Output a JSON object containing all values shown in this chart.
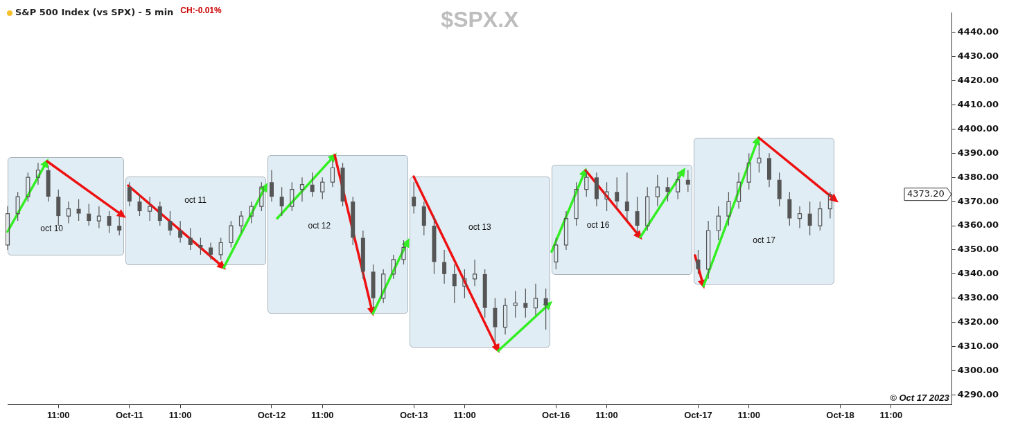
{
  "chart_data": {
    "type": "candlestick",
    "title": "$SPX.X",
    "subtitle": "S&P 500 Index (vs SPX) - 5 min",
    "annotations": [
      "CH:-0.01%",
      "© Oct 17 2023",
      "oct 10",
      "oct 11",
      "oct 12",
      "oct 13",
      "oct 16",
      "oct 17",
      "4373.20"
    ],
    "categories": [
      null,
      null,
      null,
      null,
      null,
      "11:00",
      null,
      null,
      null,
      null,
      null,
      null,
      "Oct-11",
      null,
      null,
      null,
      null,
      "11:00",
      null,
      null,
      null,
      null,
      null,
      null,
      null,
      null,
      "Oct-12",
      null,
      null,
      null,
      null,
      "11:00",
      null,
      null,
      null,
      null,
      null,
      null,
      null,
      null,
      "Oct-13",
      null,
      null,
      null,
      null,
      "11:00",
      null,
      null,
      null,
      null,
      null,
      null,
      null,
      null,
      "Oct-16",
      null,
      null,
      null,
      null,
      "11:00",
      null,
      null,
      null,
      null,
      null,
      null,
      null,
      null,
      "Oct-17",
      null,
      null,
      null,
      null,
      "11:00",
      null,
      null,
      null,
      null,
      null,
      null,
      null,
      null,
      "Oct-18",
      null,
      null,
      null,
      null,
      "11:00",
      null,
      null,
      null,
      null,
      null,
      null
    ],
    "ohlc": [
      [
        4352,
        4368,
        4350,
        4365
      ],
      [
        4365,
        4374,
        4362,
        4372
      ],
      [
        4372,
        4382,
        4370,
        4380
      ],
      [
        4380,
        4386,
        4377,
        4383
      ],
      [
        4383,
        4385,
        4370,
        4372
      ],
      [
        4372,
        4375,
        4360,
        4364
      ],
      [
        4364,
        4370,
        4361,
        4367
      ],
      [
        4367,
        4371,
        4362,
        4365
      ],
      [
        4365,
        4369,
        4360,
        4362
      ],
      [
        4362,
        4368,
        4359,
        4364
      ],
      [
        4364,
        4366,
        4357,
        4360
      ],
      [
        4360,
        4364,
        4356,
        4358
      ],
      [
        4376,
        4378,
        4368,
        4370
      ],
      [
        4370,
        4373,
        4364,
        4366
      ],
      [
        4366,
        4372,
        4362,
        4368
      ],
      [
        4368,
        4370,
        4360,
        4362
      ],
      [
        4362,
        4366,
        4356,
        4358
      ],
      [
        4358,
        4362,
        4353,
        4355
      ],
      [
        4355,
        4359,
        4350,
        4352
      ],
      [
        4352,
        4355,
        4348,
        4351
      ],
      [
        4351,
        4353,
        4346,
        4348
      ],
      [
        4348,
        4355,
        4346,
        4353
      ],
      [
        4353,
        4362,
        4351,
        4360
      ],
      [
        4360,
        4366,
        4357,
        4364
      ],
      [
        4364,
        4370,
        4361,
        4368
      ],
      [
        4368,
        4378,
        4366,
        4376
      ],
      [
        4378,
        4383,
        4370,
        4372
      ],
      [
        4372,
        4376,
        4364,
        4368
      ],
      [
        4368,
        4378,
        4366,
        4375
      ],
      [
        4375,
        4380,
        4370,
        4377
      ],
      [
        4377,
        4382,
        4372,
        4374
      ],
      [
        4374,
        4380,
        4371,
        4378
      ],
      [
        4378,
        4387,
        4376,
        4384
      ],
      [
        4384,
        4386,
        4368,
        4370
      ],
      [
        4370,
        4372,
        4352,
        4355
      ],
      [
        4355,
        4358,
        4338,
        4341
      ],
      [
        4341,
        4344,
        4326,
        4330
      ],
      [
        4330,
        4342,
        4328,
        4340
      ],
      [
        4340,
        4348,
        4338,
        4346
      ],
      [
        4346,
        4354,
        4344,
        4351
      ],
      [
        4372,
        4378,
        4365,
        4368
      ],
      [
        4368,
        4370,
        4356,
        4360
      ],
      [
        4360,
        4364,
        4340,
        4345
      ],
      [
        4345,
        4350,
        4336,
        4340
      ],
      [
        4340,
        4344,
        4328,
        4335
      ],
      [
        4335,
        4342,
        4330,
        4338
      ],
      [
        4338,
        4346,
        4335,
        4340
      ],
      [
        4340,
        4342,
        4322,
        4326
      ],
      [
        4326,
        4330,
        4312,
        4318
      ],
      [
        4318,
        4330,
        4315,
        4327
      ],
      [
        4327,
        4333,
        4322,
        4328
      ],
      [
        4328,
        4334,
        4322,
        4326
      ],
      [
        4326,
        4336,
        4323,
        4330
      ],
      [
        4330,
        4334,
        4317,
        4327
      ],
      [
        4345,
        4355,
        4342,
        4352
      ],
      [
        4352,
        4366,
        4350,
        4363
      ],
      [
        4363,
        4378,
        4360,
        4375
      ],
      [
        4375,
        4383,
        4372,
        4380
      ],
      [
        4380,
        4382,
        4368,
        4371
      ],
      [
        4371,
        4378,
        4366,
        4374
      ],
      [
        4374,
        4380,
        4367,
        4370
      ],
      [
        4370,
        4382,
        4362,
        4366
      ],
      [
        4366,
        4372,
        4357,
        4360
      ],
      [
        4360,
        4376,
        4358,
        4372
      ],
      [
        4372,
        4381,
        4368,
        4376
      ],
      [
        4376,
        4380,
        4370,
        4374
      ],
      [
        4374,
        4382,
        4371,
        4379
      ],
      [
        4379,
        4383,
        4374,
        4377
      ],
      [
        4346,
        4350,
        4340,
        4342
      ],
      [
        4342,
        4362,
        4338,
        4358
      ],
      [
        4358,
        4368,
        4354,
        4364
      ],
      [
        4364,
        4374,
        4360,
        4370
      ],
      [
        4370,
        4382,
        4367,
        4378
      ],
      [
        4378,
        4390,
        4375,
        4386
      ],
      [
        4386,
        4394,
        4382,
        4388
      ],
      [
        4388,
        4390,
        4376,
        4379
      ],
      [
        4379,
        4382,
        4368,
        4371
      ],
      [
        4371,
        4374,
        4360,
        4363
      ],
      [
        4363,
        4368,
        4359,
        4365
      ],
      [
        4365,
        4370,
        4356,
        4360
      ],
      [
        4360,
        4370,
        4358,
        4367
      ],
      [
        4367,
        4374,
        4363,
        4373
      ],
      null,
      null,
      null,
      null,
      null,
      null,
      null,
      null,
      null,
      null,
      null,
      null
    ],
    "color": "#555555",
    "ylim": [
      4286,
      4448
    ],
    "yticks": [
      {
        "value": 4290,
        "label": "4290.00"
      },
      {
        "value": 4300,
        "label": "4300.00"
      },
      {
        "value": 4310,
        "label": "4310.00"
      },
      {
        "value": 4320,
        "label": "4320.00"
      },
      {
        "value": 4330,
        "label": "4330.00"
      },
      {
        "value": 4340,
        "label": "4340.00"
      },
      {
        "value": 4350,
        "label": "4350.00"
      },
      {
        "value": 4360,
        "label": "4360.00"
      },
      {
        "value": 4370,
        "label": "4370.00"
      },
      {
        "value": 4380,
        "label": "4380.00"
      },
      {
        "value": 4390,
        "label": "4390.00"
      },
      {
        "value": 4400,
        "label": "4400.00"
      },
      {
        "value": 4410,
        "label": "4410.00"
      },
      {
        "value": 4420,
        "label": "4420.00"
      },
      {
        "value": 4430,
        "label": "4430.00"
      },
      {
        "value": 4440,
        "label": "4440.00"
      }
    ],
    "grid": false
  }
}
